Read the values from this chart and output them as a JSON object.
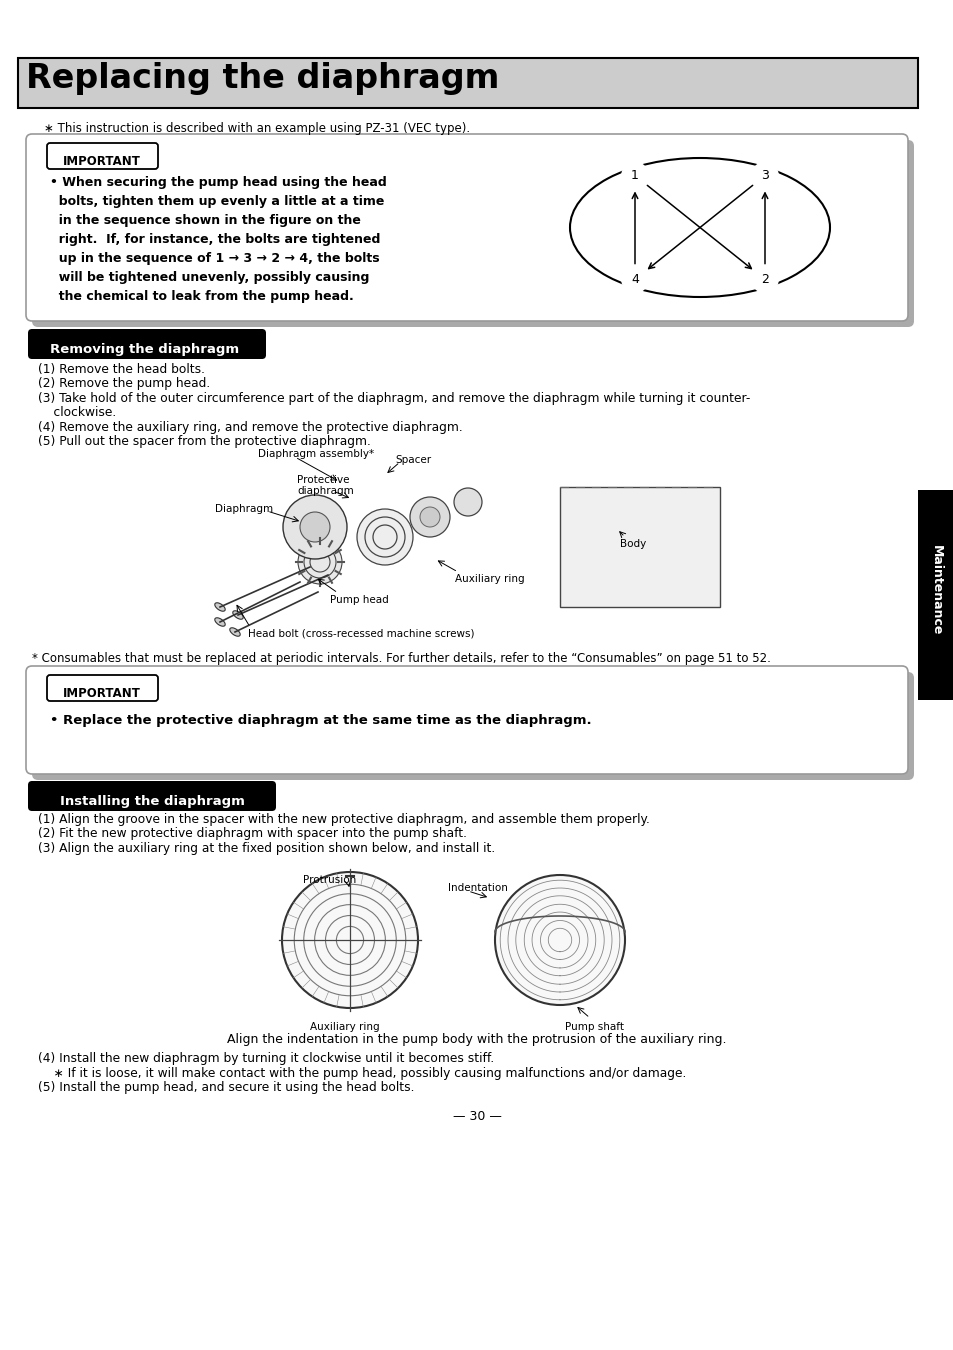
{
  "title": "Replacing the diaphragm",
  "title_bg": "#cccccc",
  "note_line": "∗ This instruction is described with an example using PZ-31 (VEC type).",
  "important1_lines": [
    "• When securing the pump head using the head",
    "  bolts, tighten them up evenly a little at a time",
    "  in the sequence shown in the figure on the",
    "  right.  If, for instance, the bolts are tightened",
    "  up in the sequence of 1 → 3 → 2 → 4, the bolts",
    "  will be tightened unevenly, possibly causing",
    "  the chemical to leak from the pump head."
  ],
  "section1_title": "Removing the diaphragm",
  "removing_steps": [
    "(1) Remove the head bolts.",
    "(2) Remove the pump head.",
    "(3) Take hold of the outer circumference part of the diaphragm, and remove the diaphragm while turning it counter-",
    "    clockwise.",
    "(4) Remove the auxiliary ring, and remove the protective diaphragm.",
    "(5) Pull out the spacer from the protective diaphragm."
  ],
  "consumables_note": "* Consumables that must be replaced at periodic intervals. For further details, refer to the “Consumables” on page 51 to 52.",
  "important2_text": "• Replace the protective diaphragm at the same time as the diaphragm.",
  "section2_title": "Installing the diaphragm",
  "installing_steps": [
    "(1) Align the groove in the spacer with the new protective diaphragm, and assemble them properly.",
    "(2) Fit the new protective diaphragm with spacer into the pump shaft.",
    "(3) Align the auxiliary ring at the fixed position shown below, and install it."
  ],
  "align_note": "Align the indentation in the pump body with the protrusion of the auxiliary ring.",
  "installing_steps2": [
    "(4) Install the new diaphragm by turning it clockwise until it becomes stiff.",
    "    ∗ If it is loose, it will make contact with the pump head, possibly causing malfunctions and/or damage.",
    "(5) Install the pump head, and secure it using the head bolts."
  ],
  "page_num": "— 30 —",
  "maintenance_tab": "Maintenance",
  "bg_color": "#ffffff"
}
